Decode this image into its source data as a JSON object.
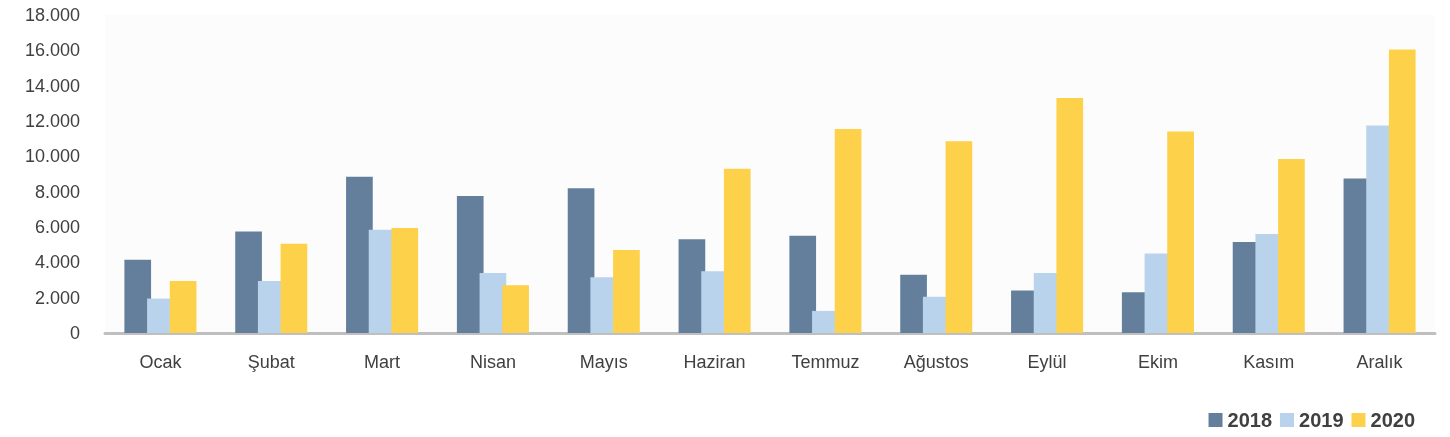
{
  "chart_data": {
    "type": "bar",
    "categories": [
      "Ocak",
      "Şubat",
      "Mart",
      "Nisan",
      "Mayıs",
      "Haziran",
      "Temmuz",
      "Ağustos",
      "Eylül",
      "Ekim",
      "Kasım",
      "Aralık"
    ],
    "series": [
      {
        "name": "2018",
        "color": "#647f9c",
        "values": [
          4150,
          5750,
          8850,
          7750,
          8200,
          5300,
          5500,
          3300,
          2400,
          2300,
          5150,
          8750
        ]
      },
      {
        "name": "2019",
        "color": "#bad3ec",
        "values": [
          1950,
          2950,
          5850,
          3400,
          3150,
          3500,
          1250,
          2050,
          3400,
          4500,
          5600,
          11750
        ]
      },
      {
        "name": "2020",
        "color": "#fdd14a",
        "values": [
          2950,
          5050,
          5950,
          2700,
          4700,
          9300,
          11550,
          10850,
          13300,
          11400,
          9850,
          16050
        ]
      }
    ],
    "ylim": [
      0,
      18000
    ],
    "yticks": [
      {
        "value": 0,
        "label": "0"
      },
      {
        "value": 2000,
        "label": "2.000"
      },
      {
        "value": 4000,
        "label": "4.000"
      },
      {
        "value": 6000,
        "label": "6.000"
      },
      {
        "value": 8000,
        "label": "8.000"
      },
      {
        "value": 10000,
        "label": "10.000"
      },
      {
        "value": 12000,
        "label": "12.000"
      },
      {
        "value": 14000,
        "label": "14.000"
      },
      {
        "value": 16000,
        "label": "16.000"
      },
      {
        "value": 18000,
        "label": "18.000"
      }
    ],
    "grid": false,
    "legend": "bottom right"
  }
}
